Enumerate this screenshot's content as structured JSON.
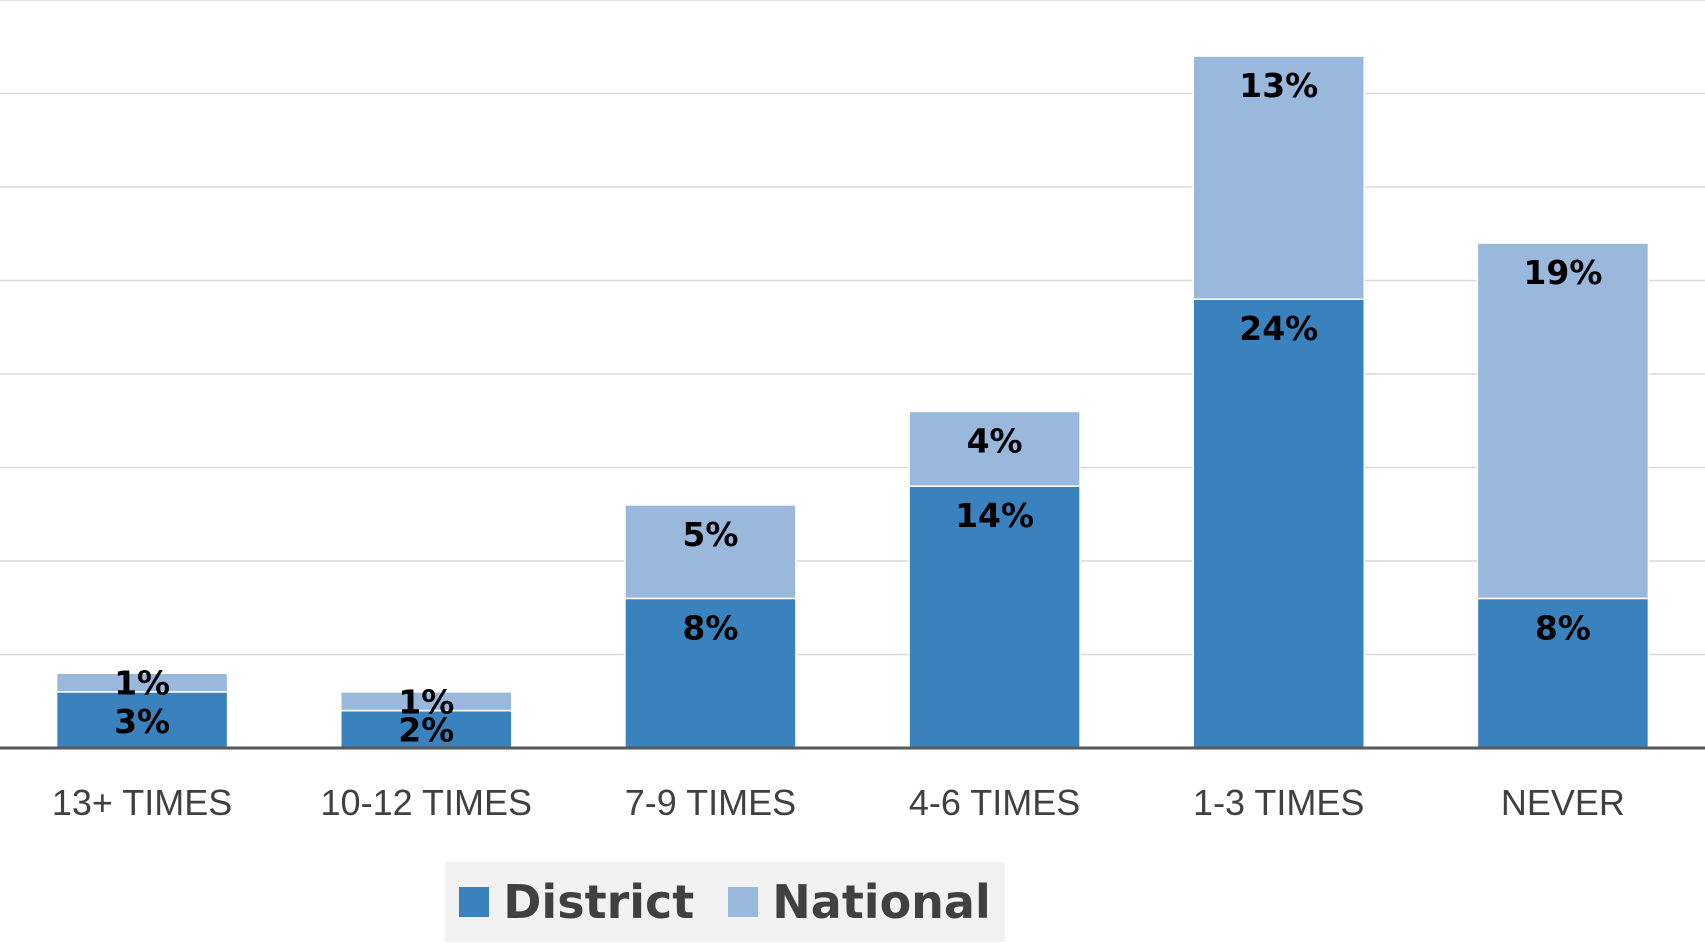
{
  "chart_data": {
    "type": "bar",
    "stacked": true,
    "categories": [
      "13+ TIMES",
      "10-12 TIMES",
      "7-9 TIMES",
      "4-6 TIMES",
      "1-3 TIMES",
      "NEVER"
    ],
    "series": [
      {
        "name": "District",
        "values": [
          3,
          2,
          8,
          14,
          24,
          8
        ],
        "labels": [
          "3%",
          "2%",
          "8%",
          "14%",
          "24%",
          "8%"
        ],
        "color": "#3a82bd"
      },
      {
        "name": "National",
        "values": [
          1,
          1,
          5,
          4,
          13,
          19
        ],
        "labels": [
          "1%",
          "1%",
          "5%",
          "4%",
          "13%",
          "19%"
        ],
        "color": "#9ab7dc"
      }
    ],
    "ylim": [
      0,
      40
    ],
    "gridlines": true,
    "legend_position": "bottom"
  }
}
